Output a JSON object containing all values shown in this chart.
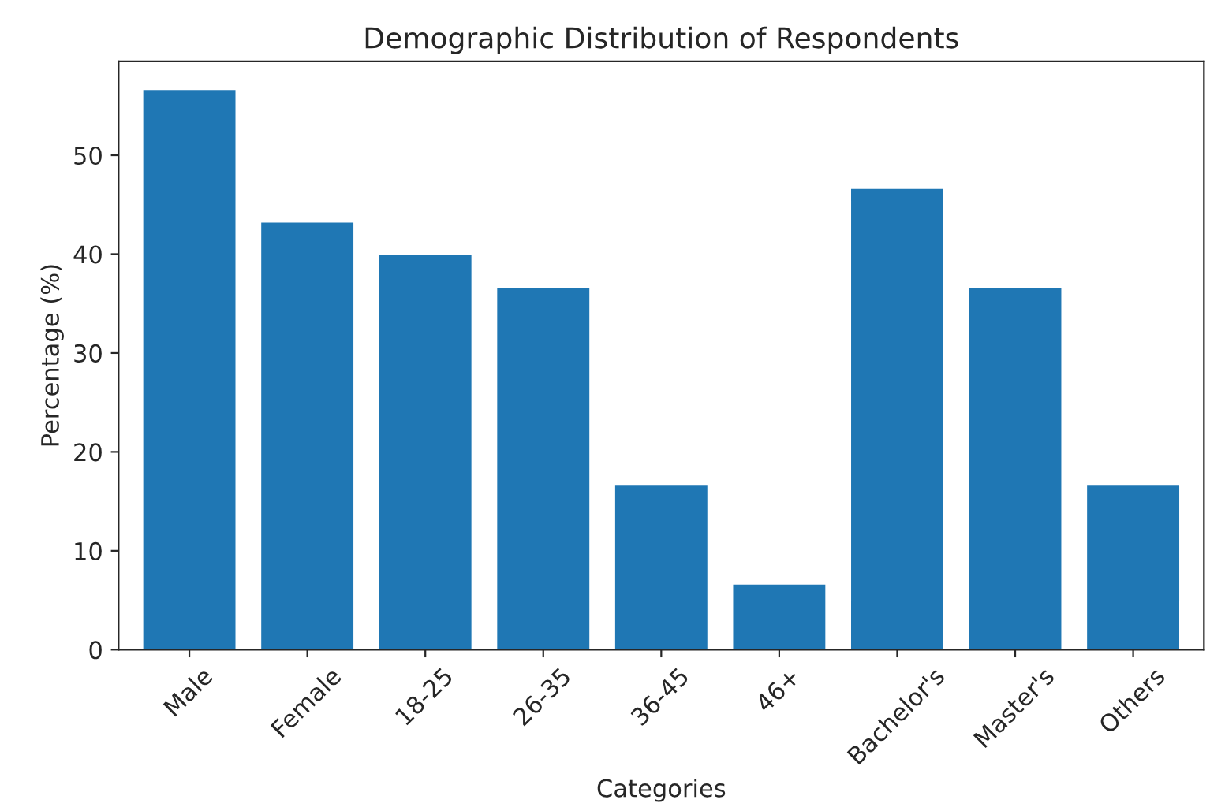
{
  "chart_data": {
    "type": "bar",
    "title": "Demographic Distribution of Respondents",
    "xlabel": "Categories",
    "ylabel": "Percentage (%)",
    "categories": [
      "Male",
      "Female",
      "18-25",
      "26-35",
      "36-45",
      "46+",
      "Bachelor's",
      "Master's",
      "Others"
    ],
    "values": [
      56.7,
      43.3,
      40.0,
      36.7,
      16.7,
      6.7,
      46.7,
      36.7,
      16.7
    ],
    "color": "#1f77b4",
    "ylim": [
      0,
      59.5
    ],
    "yticks": [
      0,
      10,
      20,
      30,
      40,
      50
    ],
    "grid": false,
    "legend": false
  }
}
